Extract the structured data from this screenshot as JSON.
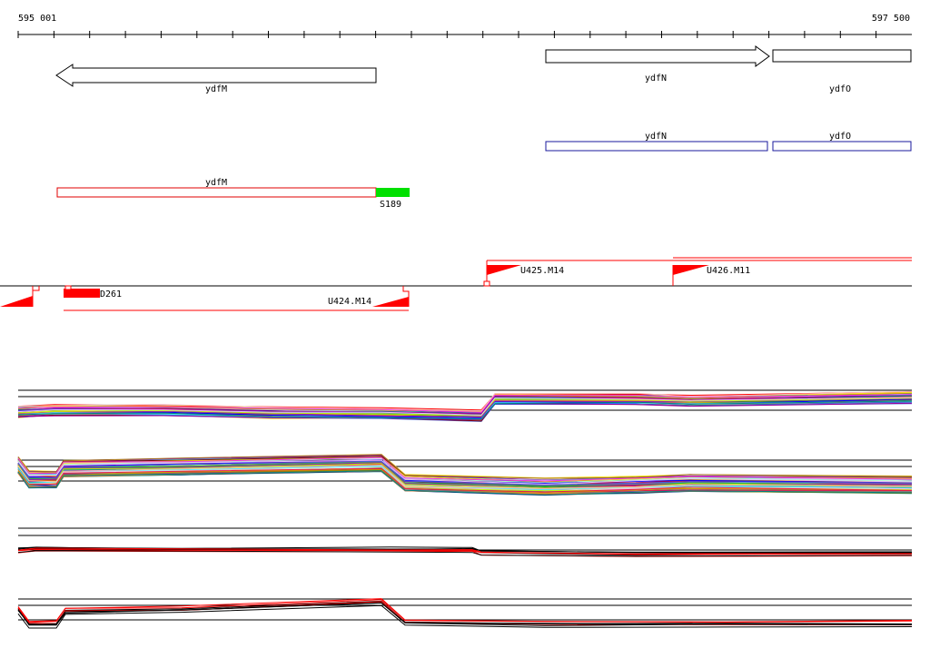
{
  "ruler": {
    "start_label": "595 001",
    "end_label": "597 500"
  },
  "genes": {
    "ydfM": "ydfM",
    "ydfN": "ydfN",
    "ydfO": "ydfO"
  },
  "transcripts": {
    "ydfN": "ydfN",
    "ydfO": "ydfO"
  },
  "operon": {
    "label": "ydfM",
    "terminator_label": "S189"
  },
  "elements": {
    "d261": "D261",
    "u424": "U424.M14",
    "u425": "U425.M14",
    "u426": "U426.M11"
  },
  "colors": {
    "feature_outline": "#000000",
    "transcript_outline": "#1a1a9c",
    "operon_outline": "#e00000",
    "terminator_fill": "#00e000",
    "promoter_fill": "#ff0000",
    "expression_high": "#000000",
    "expression_low": "#ff0000"
  },
  "icons": {
    "arrow_left": "left-arrow-icon",
    "arrow_right": "right-arrow-icon",
    "promoter_flag": "flag-icon"
  }
}
